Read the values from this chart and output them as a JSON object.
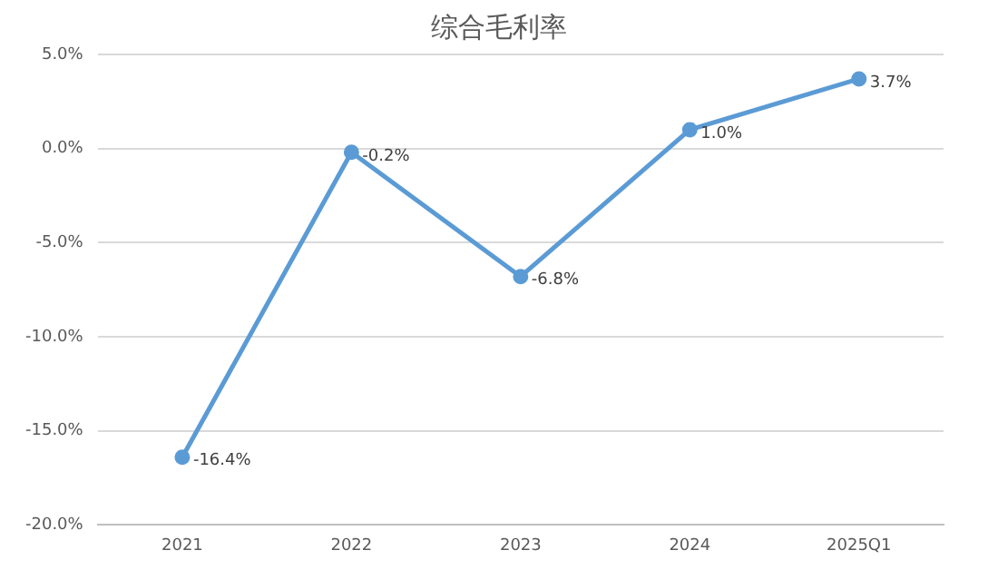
{
  "chart_data": {
    "type": "line",
    "title": "综合毛利率",
    "categories": [
      "2021",
      "2022",
      "2023",
      "2024",
      "2025Q1"
    ],
    "series": [
      {
        "color": "#5b9bd5",
        "values": [
          -16.4,
          -0.2,
          -6.8,
          1.0,
          3.7
        ],
        "value_labels": [
          "-16.4%",
          "-0.2%",
          "-6.8%",
          "1.0%",
          "3.7%"
        ]
      }
    ],
    "ylim": [
      -20,
      5
    ],
    "yticks": [
      {
        "value": 5,
        "label": "5.0%"
      },
      {
        "value": 0,
        "label": "0.0%"
      },
      {
        "value": -5,
        "label": "-5.0%"
      },
      {
        "value": -10,
        "label": "-10.0%"
      },
      {
        "value": -15,
        "label": "-15.0%"
      },
      {
        "value": -20,
        "label": "-20.0%"
      }
    ],
    "grid": "y",
    "marker": "circle",
    "legend": false
  }
}
